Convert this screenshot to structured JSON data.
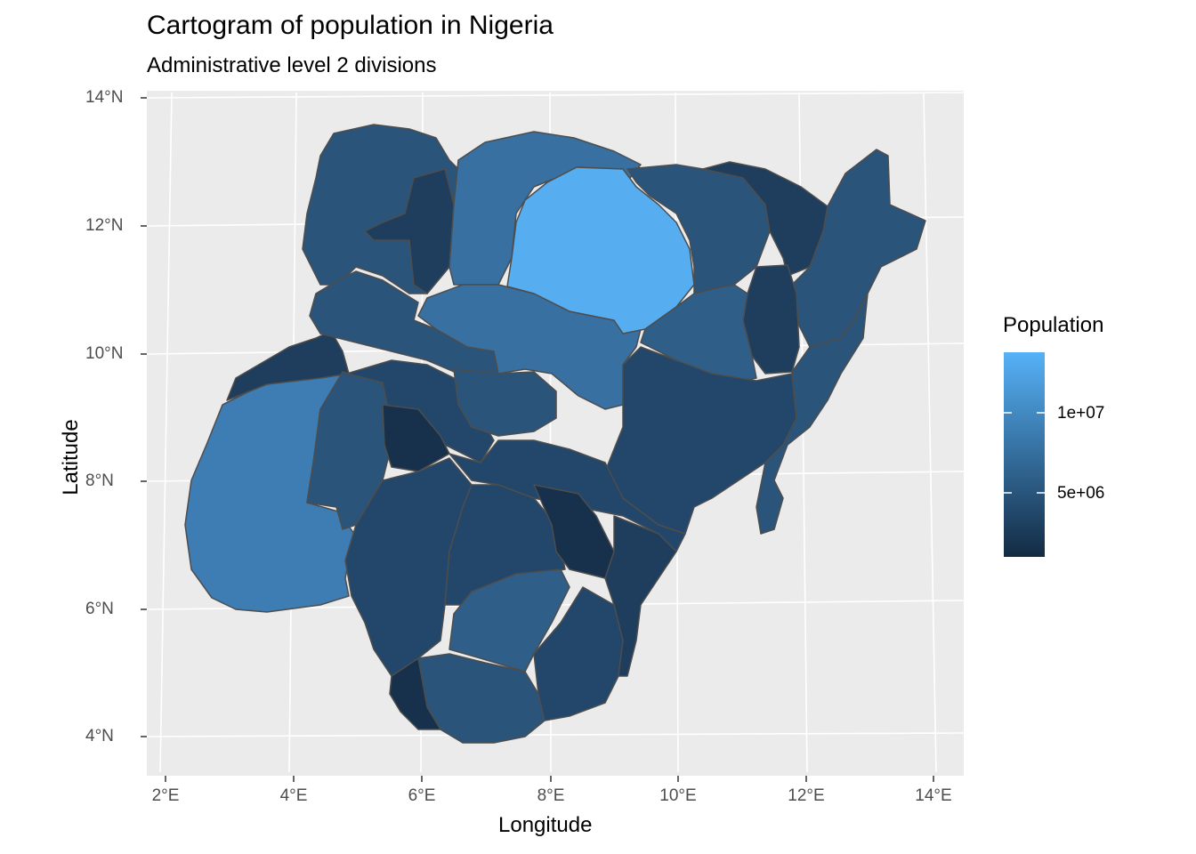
{
  "title": "Cartogram of population in Nigeria",
  "subtitle": "Administrative level 2 divisions",
  "x_axis": {
    "title": "Longitude",
    "ticks": [
      "2°E",
      "4°E",
      "6°E",
      "8°E",
      "10°E",
      "12°E",
      "14°E"
    ]
  },
  "y_axis": {
    "title": "Latitude",
    "ticks": [
      "14°N",
      "12°N",
      "10°N",
      "8°N",
      "6°N",
      "4°N"
    ]
  },
  "legend": {
    "title": "Population",
    "labels": [
      "1e+07",
      "5e+06"
    ],
    "color_high": "#56b1f7",
    "color_low": "#132b43"
  },
  "colors": {
    "panel_background": "#ebebeb",
    "grid": "#ffffff",
    "region_border": "#4d4d4d"
  }
}
